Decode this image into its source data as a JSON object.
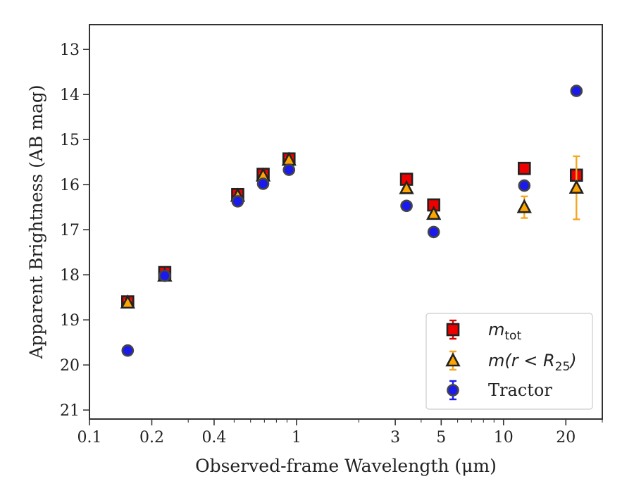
{
  "chart_data": {
    "type": "scatter",
    "title": "",
    "xlabel": "Observed-frame Wavelength (μm)",
    "ylabel": "Apparent Brightness (AB mag)",
    "xscale": "log",
    "xlim": [
      0.1,
      30
    ],
    "ylim": [
      21.2,
      12.45
    ],
    "y_inverted": true,
    "x_ticks": [
      {
        "value": 0.1,
        "label": "0.1"
      },
      {
        "value": 0.2,
        "label": "0.2"
      },
      {
        "value": 0.4,
        "label": "0.4"
      },
      {
        "value": 1,
        "label": "1"
      },
      {
        "value": 3,
        "label": "3"
      },
      {
        "value": 5,
        "label": "5"
      },
      {
        "value": 10,
        "label": "10"
      },
      {
        "value": 20,
        "label": "20"
      }
    ],
    "x_minor_ticks": [
      0.3,
      0.5,
      0.6,
      0.7,
      0.8,
      0.9,
      2,
      4,
      6,
      7,
      8,
      9,
      30
    ],
    "y_ticks": [
      13,
      14,
      15,
      16,
      17,
      18,
      19,
      20,
      21
    ],
    "grid": false,
    "legend_position": "bottom-right",
    "series": [
      {
        "name": "m_tot",
        "legend": {
          "main": "m",
          "sub": "tot"
        },
        "marker": "square",
        "color": "#ee0000",
        "edge": "#222222",
        "errcolor": "#dd0000",
        "x": [
          0.153,
          0.231,
          0.52,
          0.69,
          0.92,
          3.4,
          4.6,
          12.6,
          22.5
        ],
        "y": [
          18.6,
          17.95,
          16.22,
          15.77,
          15.43,
          15.88,
          16.45,
          15.64,
          15.79
        ],
        "yerr": [
          0.08,
          0.05,
          0.05,
          0.04,
          0.04,
          0.04,
          0.04,
          0.04,
          0.07
        ]
      },
      {
        "name": "m(r < R25)",
        "legend": {
          "main": "m(r < R",
          "sub": "25",
          "tail": ")"
        },
        "marker": "triangle",
        "color": "#ffa500",
        "edge": "#222222",
        "errcolor": "#f5a623",
        "x": [
          0.153,
          0.231,
          0.52,
          0.69,
          0.92,
          3.4,
          4.6,
          12.6,
          22.5
        ],
        "y": [
          18.62,
          18.02,
          16.25,
          15.8,
          15.45,
          16.08,
          16.65,
          16.5,
          16.07
        ],
        "yerr": [
          0.05,
          0.04,
          0.04,
          0.04,
          0.04,
          0.04,
          0.05,
          0.24,
          0.7
        ]
      },
      {
        "name": "Tractor",
        "legend": {
          "main": "Tractor"
        },
        "marker": "circle",
        "color": "#1a1aee",
        "edge": "#444444",
        "errcolor": "#1a1aee",
        "x": [
          0.153,
          0.231,
          0.52,
          0.69,
          0.92,
          3.4,
          4.6,
          12.6,
          22.5
        ],
        "y": [
          19.68,
          18.02,
          16.37,
          15.98,
          15.67,
          16.47,
          17.05,
          16.02,
          13.92
        ],
        "yerr": [
          0.04,
          0.04,
          0.03,
          0.03,
          0.03,
          0.03,
          0.04,
          0.05,
          0.08
        ]
      }
    ]
  }
}
